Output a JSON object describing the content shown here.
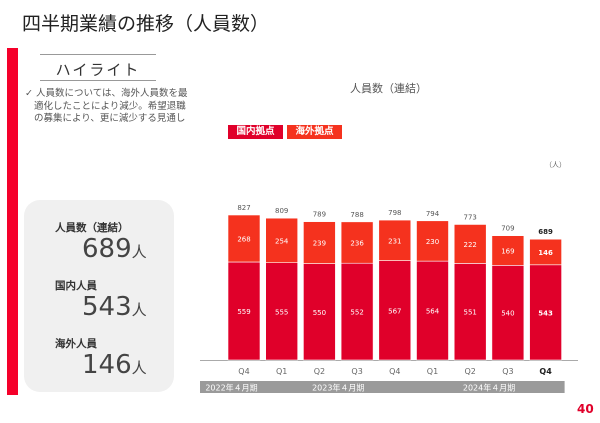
{
  "title": "四半期業績の推移（人員数）",
  "highlight": {
    "heading": "ハイライト",
    "text": "✓ 人員数については、海外人員数を最適化したことにより減少。希望退職の募集により、更に減少する見通し"
  },
  "kpis": [
    {
      "label": "人員数（連結）",
      "value": "689",
      "unit": "人"
    },
    {
      "label": "国内人員",
      "value": "543",
      "unit": "人"
    },
    {
      "label": "海外人員",
      "value": "146",
      "unit": "人"
    }
  ],
  "page_number": "40",
  "chart_data": {
    "type": "bar",
    "stacked": true,
    "title": "人員数（連結）",
    "unit_label": "（人）",
    "categories": [
      "Q4",
      "Q1",
      "Q2",
      "Q3",
      "Q4",
      "Q1",
      "Q2",
      "Q3",
      "Q4"
    ],
    "fiscal_years": [
      {
        "label": "2022年４月期",
        "quarters": 1
      },
      {
        "label": "2023年４月期",
        "quarters": 4
      },
      {
        "label": "2024年４月期",
        "quarters": 4
      }
    ],
    "series": [
      {
        "name": "国内拠点",
        "color": "#e0002a",
        "values": [
          559,
          555,
          550,
          552,
          567,
          564,
          551,
          540,
          543
        ]
      },
      {
        "name": "海外拠点",
        "color": "#f5321e",
        "values": [
          268,
          254,
          239,
          236,
          231,
          230,
          222,
          169,
          146
        ]
      }
    ],
    "totals": [
      827,
      809,
      789,
      788,
      798,
      794,
      773,
      709,
      689
    ],
    "ylim": [
      0,
      827
    ],
    "grid": false,
    "legend": "top-left"
  }
}
